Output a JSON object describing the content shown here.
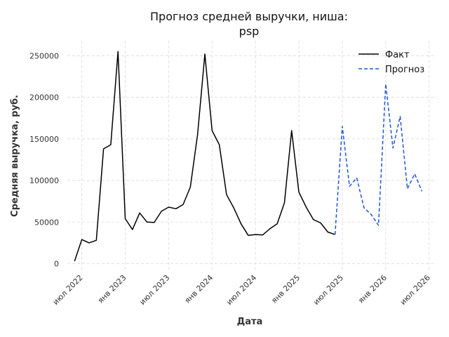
{
  "chart_data": {
    "type": "line",
    "title_lines": [
      "Прогноз средней выручки, ниша:",
      "psp"
    ],
    "xlabel": "Дата",
    "ylabel": "Средняя выручка, руб.",
    "ylim": [
      -8000,
      268000
    ],
    "xlim": [
      "2022-05",
      "2026-08"
    ],
    "y_ticks": [
      0,
      50000,
      100000,
      150000,
      200000,
      250000
    ],
    "x_ticks": [
      {
        "date": "2022-07",
        "label": "июл 2022"
      },
      {
        "date": "2023-01",
        "label": "янв 2023"
      },
      {
        "date": "2023-07",
        "label": "июл 2023"
      },
      {
        "date": "2024-01",
        "label": "янв 2024"
      },
      {
        "date": "2024-07",
        "label": "июл 2024"
      },
      {
        "date": "2025-01",
        "label": "янв 2025"
      },
      {
        "date": "2025-07",
        "label": "июл 2025"
      },
      {
        "date": "2026-01",
        "label": "янв 2026"
      },
      {
        "date": "2026-07",
        "label": "июл 2026"
      }
    ],
    "grid": true,
    "legend_position": "top-right",
    "series": [
      {
        "name": "Факт",
        "color": "#000000",
        "style": "solid",
        "points": [
          [
            "2022-06",
            3000
          ],
          [
            "2022-07",
            29000
          ],
          [
            "2022-08",
            25000
          ],
          [
            "2022-09",
            28000
          ],
          [
            "2022-10",
            138000
          ],
          [
            "2022-11",
            143000
          ],
          [
            "2022-12",
            255000
          ],
          [
            "2023-01",
            54000
          ],
          [
            "2023-02",
            41000
          ],
          [
            "2023-03",
            61000
          ],
          [
            "2023-04",
            50000
          ],
          [
            "2023-05",
            49500
          ],
          [
            "2023-06",
            63000
          ],
          [
            "2023-07",
            68000
          ],
          [
            "2023-08",
            66000
          ],
          [
            "2023-09",
            71000
          ],
          [
            "2023-10",
            92000
          ],
          [
            "2023-11",
            155000
          ],
          [
            "2023-12",
            252000
          ],
          [
            "2024-01",
            160000
          ],
          [
            "2024-02",
            143000
          ],
          [
            "2024-03",
            83000
          ],
          [
            "2024-04",
            67000
          ],
          [
            "2024-05",
            48000
          ],
          [
            "2024-06",
            34000
          ],
          [
            "2024-07",
            35000
          ],
          [
            "2024-08",
            34500
          ],
          [
            "2024-09",
            42000
          ],
          [
            "2024-10",
            48000
          ],
          [
            "2024-11",
            73000
          ],
          [
            "2024-12",
            160000
          ],
          [
            "2025-01",
            86000
          ],
          [
            "2025-02",
            68000
          ],
          [
            "2025-03",
            53000
          ],
          [
            "2025-04",
            49000
          ],
          [
            "2025-05",
            38000
          ],
          [
            "2025-06",
            35000
          ]
        ]
      },
      {
        "name": "Прогноз",
        "color": "#1f55d6",
        "style": "dashed",
        "points": [
          [
            "2025-06",
            35000
          ],
          [
            "2025-07",
            165000
          ],
          [
            "2025-08",
            93000
          ],
          [
            "2025-09",
            103000
          ],
          [
            "2025-10",
            67000
          ],
          [
            "2025-11",
            59000
          ],
          [
            "2025-12",
            46000
          ],
          [
            "2026-01",
            216000
          ],
          [
            "2026-02",
            139000
          ],
          [
            "2026-03",
            177000
          ],
          [
            "2026-04",
            90000
          ],
          [
            "2026-05",
            108000
          ],
          [
            "2026-06",
            87000
          ]
        ]
      }
    ]
  }
}
